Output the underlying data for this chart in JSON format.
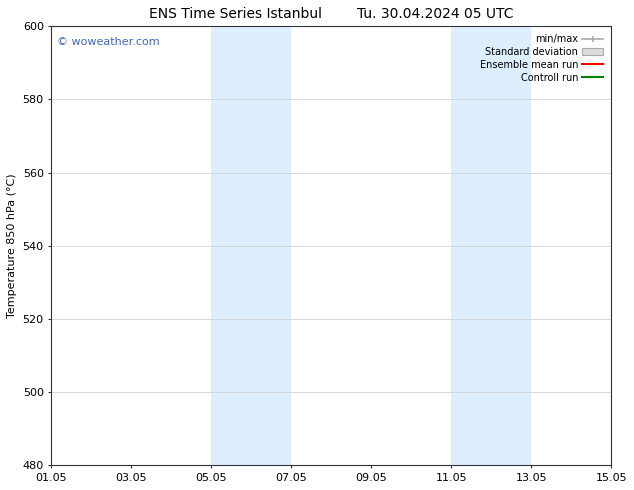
{
  "title_left": "ENS Time Series Istanbul",
  "title_right": "Tu. 30.04.2024 05 UTC",
  "ylabel": "Temperature 850 hPa (°C)",
  "watermark": "© woweather.com",
  "xlim": [
    0,
    14
  ],
  "ylim": [
    480,
    600
  ],
  "yticks": [
    480,
    500,
    520,
    540,
    560,
    580,
    600
  ],
  "xtick_labels": [
    "01.05",
    "03.05",
    "05.05",
    "07.05",
    "09.05",
    "11.05",
    "13.05",
    "15.05"
  ],
  "xtick_positions": [
    0,
    2,
    4,
    6,
    8,
    10,
    12,
    14
  ],
  "shaded_bands": [
    {
      "x_start": 4.0,
      "x_end": 6.0,
      "color": "#ddeeff"
    },
    {
      "x_start": 10.0,
      "x_end": 12.0,
      "color": "#ddeeff"
    }
  ],
  "legend_items": [
    {
      "label": "min/max",
      "color": "#aaaaaa"
    },
    {
      "label": "Standard deviation",
      "color": "#cccccc"
    },
    {
      "label": "Ensemble mean run",
      "color": "#ff0000"
    },
    {
      "label": "Controll run",
      "color": "#008000"
    }
  ],
  "background_color": "#ffffff",
  "grid_color": "#cccccc",
  "watermark_color": "#4466cc",
  "title_fontsize": 10,
  "axis_fontsize": 8,
  "tick_fontsize": 8
}
